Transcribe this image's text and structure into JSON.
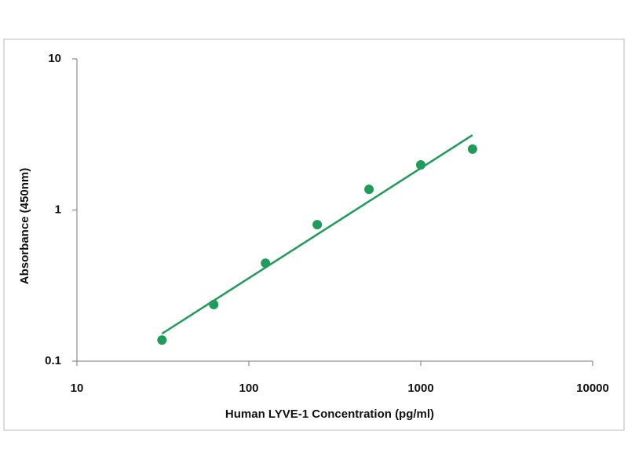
{
  "chart_data": {
    "type": "scatter",
    "x_label": "Human LYVE-1  Concentration (pg/ml)",
    "y_label": "Absorbance (450nm)",
    "xscale": "log",
    "yscale": "log",
    "xlim": [
      10,
      10000
    ],
    "ylim": [
      0.1,
      10
    ],
    "xticks": [
      10,
      100,
      1000,
      10000
    ],
    "yticks": [
      0.1,
      1,
      10
    ],
    "series": [
      {
        "mode": "markers",
        "color": "#1f9c5a",
        "x": [
          31.25,
          62.5,
          125,
          250,
          500,
          1000,
          2000
        ],
        "values": [
          0.138,
          0.237,
          0.445,
          0.8,
          1.37,
          1.99,
          2.53
        ]
      },
      {
        "mode": "line",
        "color": "#1f9c5a",
        "x": [
          31.25,
          2000
        ],
        "values": [
          0.152,
          3.13
        ]
      }
    ]
  }
}
